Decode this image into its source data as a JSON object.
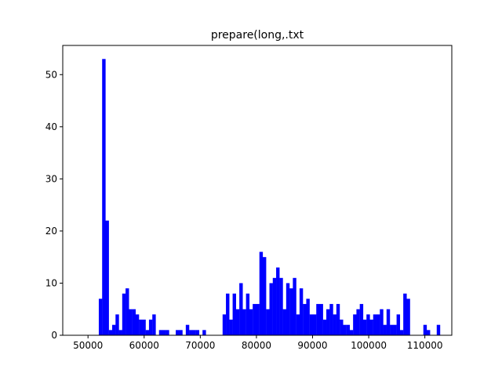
{
  "chart_data": {
    "type": "bar",
    "subtype": "histogram",
    "title": "prepare(long,.txt",
    "xlabel": "",
    "ylabel": "",
    "bar_color": "#0000ff",
    "grid": false,
    "xlim": [
      45500,
      114800
    ],
    "ylim": [
      0,
      55.6
    ],
    "x_ticks": [
      50000,
      60000,
      70000,
      80000,
      90000,
      100000,
      110000
    ],
    "x_tick_labels": [
      "50000",
      "60000",
      "70000",
      "80000",
      "90000",
      "100000",
      "110000"
    ],
    "y_ticks": [
      0,
      10,
      20,
      30,
      40,
      50
    ],
    "y_tick_labels": [
      "0",
      "10",
      "20",
      "30",
      "40",
      "50"
    ],
    "bin_start": 51920,
    "bin_width": 596,
    "counts": [
      7,
      53,
      22,
      1,
      2,
      4,
      1,
      8,
      9,
      5,
      5,
      4,
      3,
      3,
      1,
      3,
      4,
      0,
      1,
      1,
      1,
      0,
      0,
      1,
      1,
      0,
      2,
      1,
      1,
      1,
      0,
      1,
      0,
      0,
      0,
      0,
      0,
      4,
      8,
      3,
      8,
      5,
      10,
      5,
      8,
      5,
      6,
      6,
      16,
      15,
      5,
      10,
      11,
      13,
      11,
      5,
      10,
      9,
      11,
      4,
      9,
      6,
      7,
      4,
      4,
      6,
      6,
      3,
      5,
      6,
      4,
      6,
      3,
      2,
      2,
      1,
      4,
      5,
      6,
      3,
      4,
      3,
      4,
      4,
      5,
      2,
      5,
      2,
      2,
      4,
      1,
      8,
      7,
      0,
      0,
      0,
      0,
      2,
      1,
      0,
      0,
      2
    ]
  }
}
